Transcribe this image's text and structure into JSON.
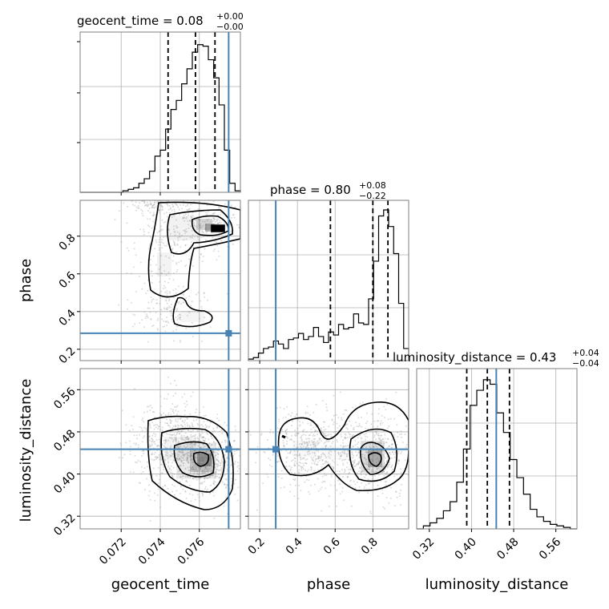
{
  "colors": {
    "truth": "#4682b4",
    "hist": "#000000",
    "grid": "#b0b0b0",
    "density": "#5a5a5a"
  },
  "chart_data": {
    "type": "corner",
    "params": [
      "geocent_time",
      "phase",
      "luminosity_distance"
    ],
    "axis_labels": {
      "x": [
        "geocent_time",
        "phase",
        "luminosity_distance"
      ],
      "y": [
        "phase",
        "luminosity_distance"
      ]
    },
    "titles": [
      {
        "text": "geocent_time = 0.08",
        "sup": "+0.00",
        "sub": "−0.00"
      },
      {
        "text": "phase = 0.80",
        "sup": "+0.08",
        "sub": "−0.22"
      },
      {
        "text": "luminosity_distance = 0.43",
        "sup": "+0.04",
        "sub": "−0.04"
      }
    ],
    "ranges": [
      [
        0.0699,
        0.0781
      ],
      [
        0.14,
        0.99
      ],
      [
        0.296,
        0.6
      ]
    ],
    "ticks": {
      "geocent_time": {
        "values": [
          0.072,
          0.074,
          0.076
        ],
        "labels": [
          "0.072",
          "0.074",
          "0.076"
        ]
      },
      "phase": {
        "values": [
          0.2,
          0.4,
          0.6,
          0.8
        ],
        "labels": [
          "0.2",
          "0.4",
          "0.6",
          "0.8"
        ]
      },
      "luminosity_distance": {
        "values": [
          0.32,
          0.4,
          0.48,
          0.56
        ],
        "labels": [
          "0.32",
          "0.40",
          "0.48",
          "0.56"
        ]
      }
    },
    "truth": {
      "geocent_time": 0.0775,
      "phase": 0.285,
      "luminosity_distance": 0.447
    },
    "quantiles": {
      "geocent_time": [
        0.0744,
        0.0758,
        0.0768
      ],
      "phase": [
        0.575,
        0.8,
        0.88
      ],
      "luminosity_distance": [
        0.391,
        0.43,
        0.472
      ]
    },
    "histograms": {
      "geocent_time": [
        0,
        0,
        0,
        0,
        0,
        0,
        0,
        0,
        0.01,
        0.02,
        0.03,
        0.06,
        0.09,
        0.14,
        0.24,
        0.28,
        0.42,
        0.55,
        0.61,
        0.72,
        0.82,
        0.93,
        0.98,
        0.97,
        0.88,
        0.76,
        0.58,
        0.28,
        0.06,
        0.01
      ],
      "phase": [
        0.01,
        0.02,
        0.05,
        0.08,
        0.09,
        0.13,
        0.11,
        0.08,
        0.14,
        0.15,
        0.18,
        0.14,
        0.16,
        0.22,
        0.16,
        0.12,
        0.19,
        0.17,
        0.24,
        0.21,
        0.22,
        0.31,
        0.25,
        0.24,
        0.41,
        0.66,
        0.96,
        1.0,
        0.89,
        0.71,
        0.38,
        0.08
      ],
      "luminosity_distance": [
        0,
        0.02,
        0.04,
        0.07,
        0.12,
        0.18,
        0.31,
        0.53,
        0.82,
        0.92,
        0.99,
        0.96,
        0.77,
        0.64,
        0.46,
        0.34,
        0.23,
        0.13,
        0.08,
        0.05,
        0.03,
        0.02,
        0.01,
        0
      ]
    }
  }
}
